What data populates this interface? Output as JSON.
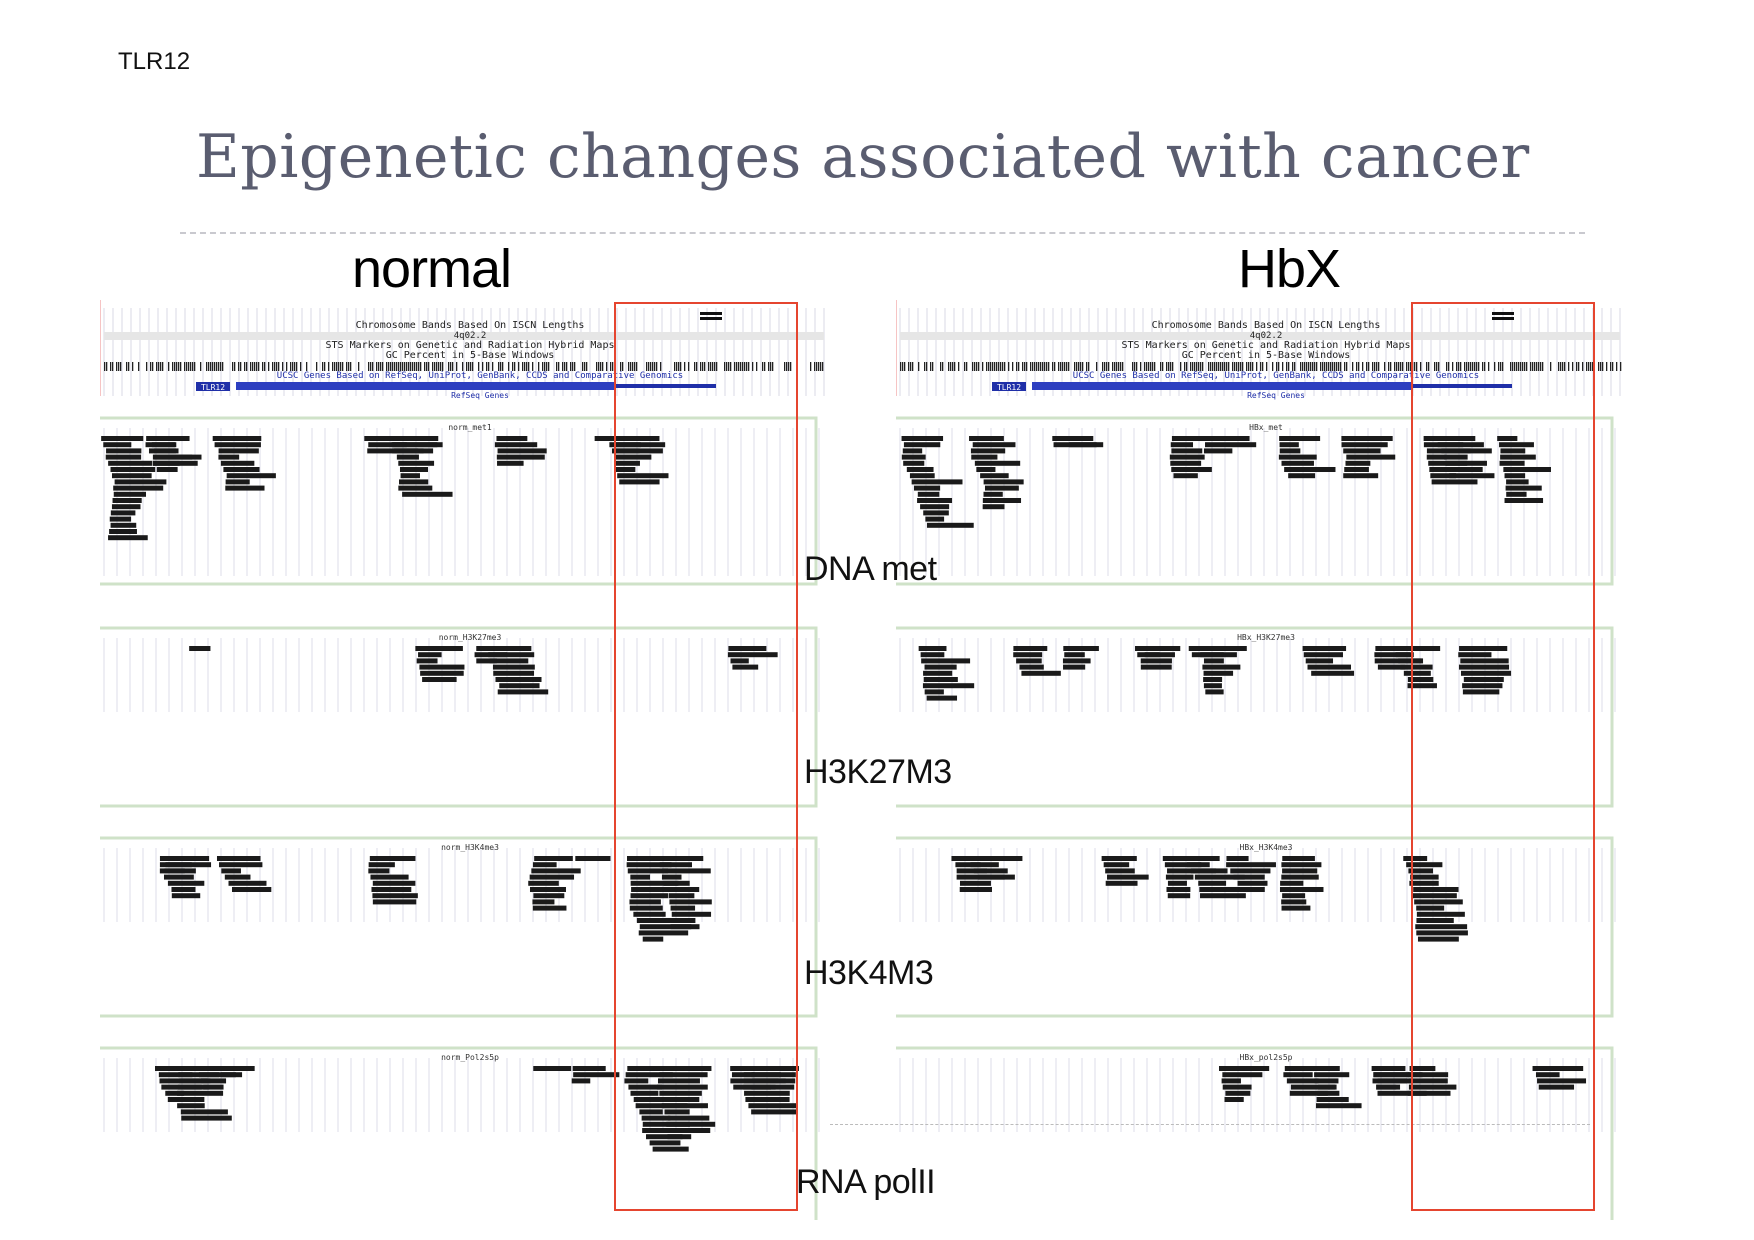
{
  "slide": {
    "tag": "TLR12",
    "title": "Epigenetic changes associated with cancer"
  },
  "columns": {
    "left": "normal",
    "right": "HbX"
  },
  "track_labels": {
    "dna": "DNA met",
    "h3k27": "H3K27M3",
    "h3k4": "H3K4M3",
    "rna": "RNA polII"
  },
  "genome_header": {
    "bands": "Chromosome Bands Based On ISCN Lengths",
    "band_name": "4q02.2",
    "sts": "STS Markers on Genetic and Radiation Hybrid Maps",
    "gc": "GC Percent in 5-Base Windows",
    "genes": "UCSC Genes Based on RefSeq, UniProt, GenBank, CCDS and Comparative Genomics",
    "gene_symbol": "TLR12",
    "refseq": "RefSeq Genes"
  },
  "panel_titles": {
    "normal": [
      "norm_met1",
      "norm_H3K27me3",
      "norm_H3K4me3",
      "norm_Pol2s5p"
    ],
    "hbx": [
      "HBx_met",
      "HBx_H3K27me3",
      "HBx_H3K4me3",
      "HBx_pol2s5p"
    ]
  },
  "colors": {
    "highlight": "#e5452f",
    "gene": "#1f2fa8",
    "title": "#5a5d70",
    "reads": "#1a1a1a"
  }
}
